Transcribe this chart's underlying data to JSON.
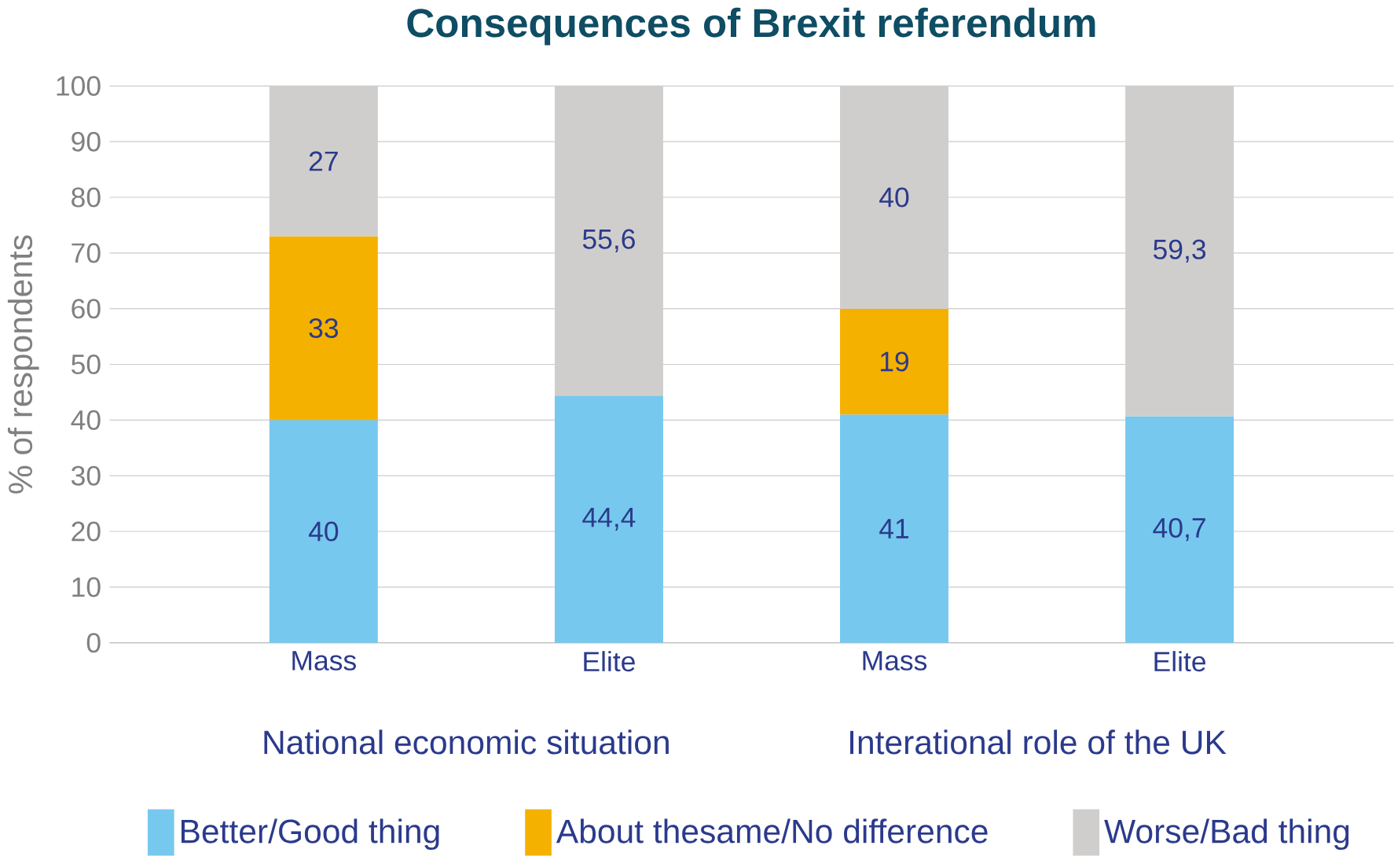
{
  "chart_data": {
    "type": "bar",
    "stacked": true,
    "title": "Consequences of Brexit referendum",
    "ylabel": "% of respondents",
    "categories": [
      "Mass",
      "Elite",
      "Mass",
      "Elite"
    ],
    "series": [
      {
        "name": "Better/Good thing",
        "color": "#76c8ee",
        "values": [
          40,
          44.4,
          41,
          40.7
        ],
        "value_labels": [
          "40",
          "44,4",
          "41",
          "40,7"
        ]
      },
      {
        "name": "About thesame/No difference",
        "color": "#f5b100",
        "values": [
          33,
          null,
          19,
          null
        ],
        "value_labels": [
          "33",
          null,
          "19",
          null
        ]
      },
      {
        "name": "Worse/Bad thing",
        "color": "#d0cecc",
        "values": [
          27,
          55.6,
          40,
          59.3
        ],
        "value_labels": [
          "27",
          "55,6",
          "40",
          "59,3"
        ]
      }
    ],
    "annotations": [
      "National economic situation",
      "Interational role of the UK"
    ],
    "ylim": [
      0,
      100
    ],
    "yticks": [
      0,
      10,
      20,
      30,
      40,
      50,
      60,
      70,
      80,
      90,
      100
    ],
    "grid": "y",
    "legend": "bottom"
  }
}
